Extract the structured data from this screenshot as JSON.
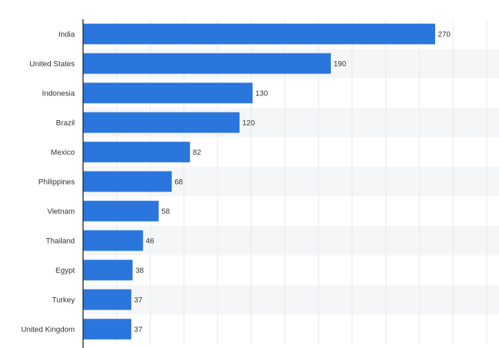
{
  "chart_data": {
    "type": "bar",
    "orientation": "horizontal",
    "categories": [
      "India",
      "United States",
      "Indonesia",
      "Brazil",
      "Mexico",
      "Philippines",
      "Vietnam",
      "Thailand",
      "Egypt",
      "Turkey",
      "United Kingdom"
    ],
    "values": [
      270,
      190,
      130,
      120,
      82,
      68,
      58,
      46,
      38,
      37,
      37
    ],
    "title": "",
    "xlabel": "",
    "ylabel": "",
    "xlim": [
      0,
      310
    ],
    "grid": true,
    "legend": "none",
    "data_labels": true
  },
  "colors": {
    "bar": "#2a76dd",
    "band_alt": "#f5f6f7",
    "band": "#ffffff",
    "grid": "#e3e6ea",
    "axis": "#2b2b2b",
    "text": "#333333"
  }
}
